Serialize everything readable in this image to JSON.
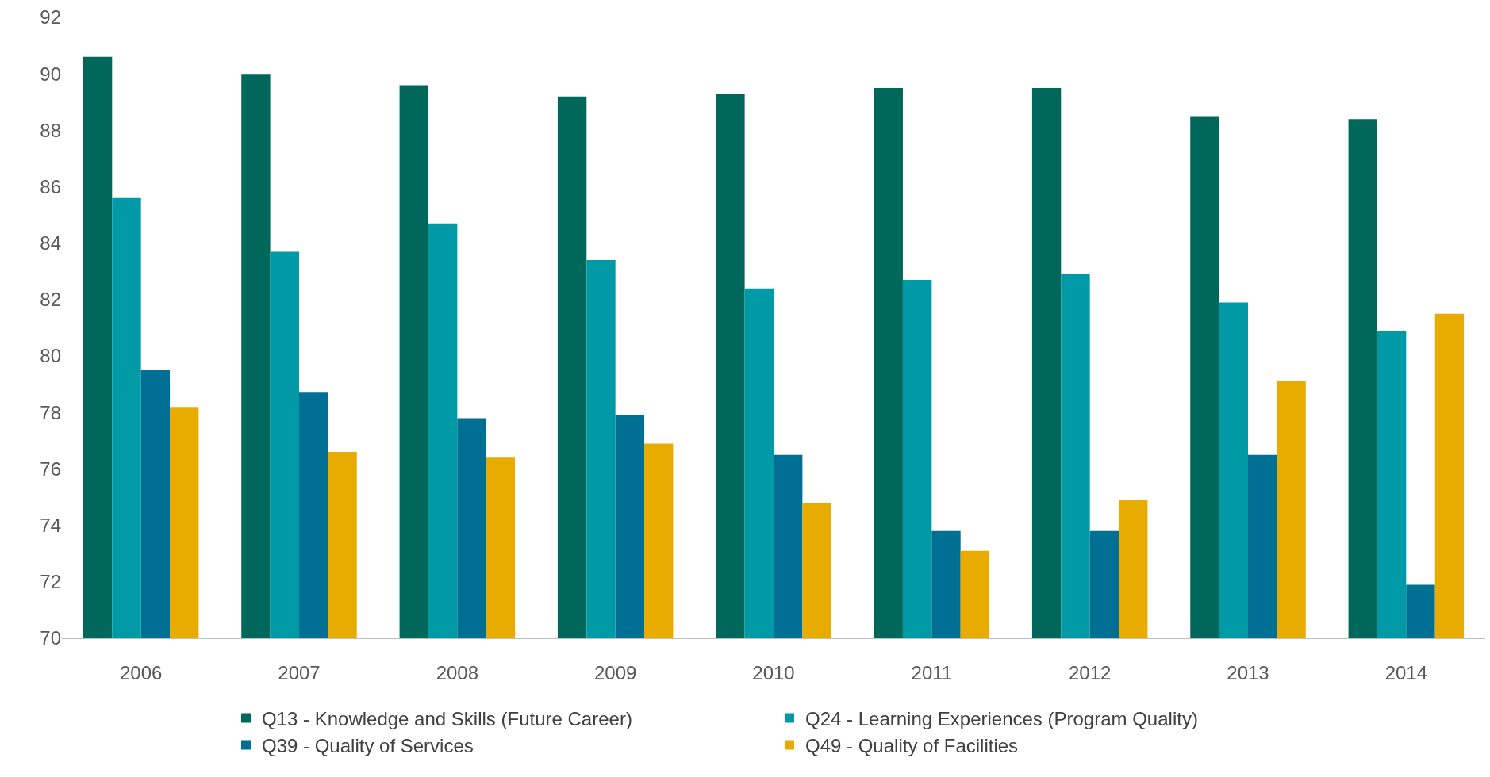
{
  "chart_data": {
    "type": "bar",
    "categories": [
      "2006",
      "2007",
      "2008",
      "2009",
      "2010",
      "2011",
      "2012",
      "2013",
      "2014"
    ],
    "series": [
      {
        "name": "Q13 - Knowledge and Skills (Future Career)",
        "color": "#00685a",
        "values": [
          90.6,
          90.0,
          89.6,
          89.2,
          89.3,
          89.5,
          89.5,
          88.5,
          88.4
        ]
      },
      {
        "name": "Q24 - Learning Experiences (Program Quality)",
        "color": "#009aa6",
        "values": [
          85.6,
          83.7,
          84.7,
          83.4,
          82.4,
          82.7,
          82.9,
          81.9,
          80.9
        ]
      },
      {
        "name": "Q39 - Quality of Services",
        "color": "#006f94",
        "values": [
          79.5,
          78.7,
          77.8,
          77.9,
          76.5,
          73.8,
          73.8,
          76.5,
          71.9
        ]
      },
      {
        "name": "Q49 - Quality of Facilities",
        "color": "#e8ab00",
        "values": [
          78.2,
          76.6,
          76.4,
          76.9,
          74.8,
          73.1,
          74.9,
          79.1,
          81.5
        ]
      }
    ],
    "ylim": [
      70,
      92
    ],
    "yticks": [
      70,
      72,
      74,
      76,
      78,
      80,
      82,
      84,
      86,
      88,
      90,
      92
    ],
    "legend": "bottom"
  }
}
